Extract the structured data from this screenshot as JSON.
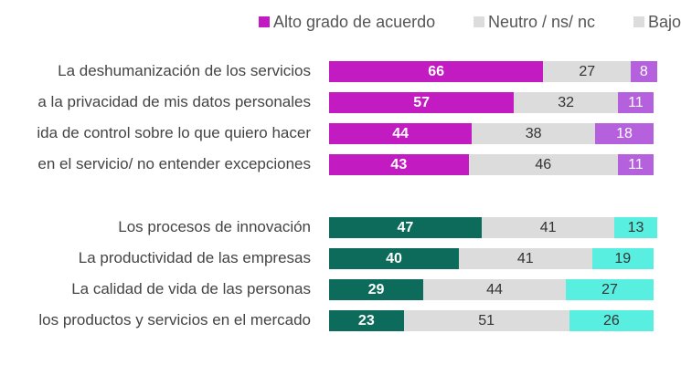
{
  "chart_data": {
    "type": "bar",
    "orientation": "horizontal",
    "stacked": true,
    "xlim": [
      0,
      100
    ],
    "legend": {
      "placement": "top",
      "entries": [
        {
          "label": "Alto grado de acuerdo",
          "key": "alto"
        },
        {
          "label": "Neutro / ns/ nc",
          "key": "neutro"
        },
        {
          "label": "Bajo",
          "key": "bajo"
        }
      ]
    },
    "groups": [
      {
        "colors": {
          "alto": "#c21bc2",
          "neutro": "#dcdcdc",
          "bajo": "#b561dd"
        },
        "label_colors": {
          "alto": "#ffffff",
          "neutro": "#333333",
          "bajo": "#ffffff"
        },
        "categories": [
          "La deshumanización de los servicios",
          "a la privacidad de mis datos personales",
          "ida de control sobre lo que quiero hacer",
          "en el servicio/ no entender excepciones"
        ],
        "series": [
          {
            "key": "alto",
            "name": "Alto grado de acuerdo",
            "values": [
              66,
              57,
              44,
              43
            ]
          },
          {
            "key": "neutro",
            "name": "Neutro / ns/ nc",
            "values": [
              27,
              32,
              38,
              46
            ]
          },
          {
            "key": "bajo",
            "name": "Bajo",
            "values": [
              8,
              11,
              18,
              11
            ]
          }
        ]
      },
      {
        "colors": {
          "alto": "#0c6b5a",
          "neutro": "#dcdcdc",
          "bajo": "#59efe0"
        },
        "label_colors": {
          "alto": "#ffffff",
          "neutro": "#333333",
          "bajo": "#333333"
        },
        "categories": [
          "Los procesos de innovación",
          "La productividad de las empresas",
          "La calidad de vida de las personas",
          "los productos y servicios en el mercado"
        ],
        "series": [
          {
            "key": "alto",
            "name": "Alto grado de acuerdo",
            "values": [
              47,
              40,
              29,
              23
            ]
          },
          {
            "key": "neutro",
            "name": "Neutro / ns/ nc",
            "values": [
              41,
              41,
              44,
              51
            ]
          },
          {
            "key": "bajo",
            "name": "Bajo",
            "values": [
              13,
              19,
              27,
              26
            ]
          }
        ]
      }
    ]
  },
  "legend_colors": {
    "alto": "#c21bc2",
    "neutro": "#dcdcdc",
    "bajo": "#dcdcdc"
  }
}
